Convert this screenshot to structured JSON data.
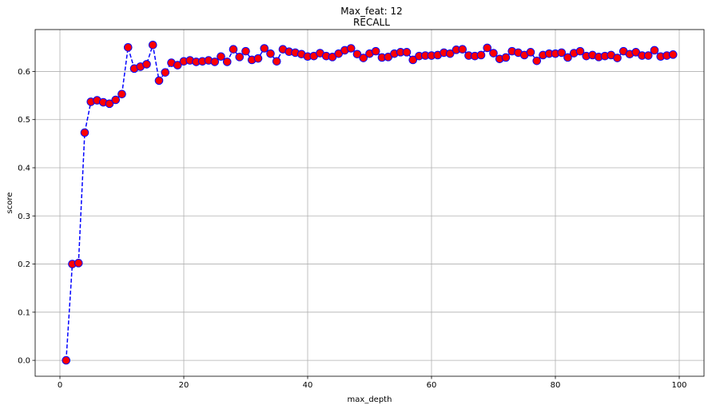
{
  "chart_data": {
    "type": "line",
    "title": "Max_feat: 12",
    "subtitle": "RECALL",
    "xlabel": "max_depth",
    "ylabel": "score",
    "xlim": [
      -4,
      104
    ],
    "ylim": [
      -0.033,
      0.687
    ],
    "x_ticks": [
      0,
      20,
      40,
      60,
      80,
      100
    ],
    "y_ticks": [
      0.0,
      0.1,
      0.2,
      0.3,
      0.4,
      0.5,
      0.6
    ],
    "x_tick_labels": [
      "0",
      "20",
      "40",
      "60",
      "80",
      "100"
    ],
    "y_tick_labels": [
      "0.0",
      "0.1",
      "0.2",
      "0.3",
      "0.4",
      "0.5",
      "0.6"
    ],
    "grid": true,
    "line_color": "#0000ff",
    "line_style": "dashed",
    "marker_fill": "#ff0000",
    "marker_edge": "#0000ff",
    "series": [
      {
        "x": [
          1,
          2,
          3,
          4,
          5,
          6,
          7,
          8,
          9,
          10,
          11,
          12,
          13,
          14,
          15,
          16,
          17,
          18,
          19,
          20,
          21,
          22,
          23,
          24,
          25,
          26,
          27,
          28,
          29,
          30,
          31,
          32,
          33,
          34,
          35,
          36,
          37,
          38,
          39,
          40,
          41,
          42,
          43,
          44,
          45,
          46,
          47,
          48,
          49,
          50,
          51,
          52,
          53,
          54,
          55,
          56,
          57,
          58,
          59,
          60,
          61,
          62,
          63,
          64,
          65,
          66,
          67,
          68,
          69,
          70,
          71,
          72,
          73,
          74,
          75,
          76,
          77,
          78,
          79,
          80,
          81,
          82,
          83,
          84,
          85,
          86,
          87,
          88,
          89,
          90,
          91,
          92,
          93,
          94,
          95,
          96,
          97,
          98,
          99
        ],
        "values": [
          0.0,
          0.2,
          0.202,
          0.473,
          0.537,
          0.54,
          0.536,
          0.533,
          0.541,
          0.553,
          0.65,
          0.606,
          0.61,
          0.615,
          0.655,
          0.581,
          0.598,
          0.618,
          0.613,
          0.621,
          0.623,
          0.62,
          0.621,
          0.623,
          0.62,
          0.631,
          0.62,
          0.646,
          0.63,
          0.642,
          0.624,
          0.627,
          0.648,
          0.637,
          0.621,
          0.646,
          0.641,
          0.639,
          0.636,
          0.631,
          0.632,
          0.638,
          0.632,
          0.63,
          0.637,
          0.644,
          0.648,
          0.636,
          0.628,
          0.637,
          0.642,
          0.629,
          0.63,
          0.637,
          0.64,
          0.64,
          0.624,
          0.632,
          0.633,
          0.633,
          0.634,
          0.639,
          0.637,
          0.645,
          0.646,
          0.633,
          0.632,
          0.634,
          0.649,
          0.638,
          0.626,
          0.629,
          0.642,
          0.639,
          0.634,
          0.64,
          0.622,
          0.634,
          0.637,
          0.637,
          0.639,
          0.629,
          0.638,
          0.642,
          0.632,
          0.634,
          0.63,
          0.632,
          0.634,
          0.628,
          0.642,
          0.636,
          0.64,
          0.633,
          0.633,
          0.644,
          0.631,
          0.633,
          0.635
        ]
      }
    ]
  }
}
